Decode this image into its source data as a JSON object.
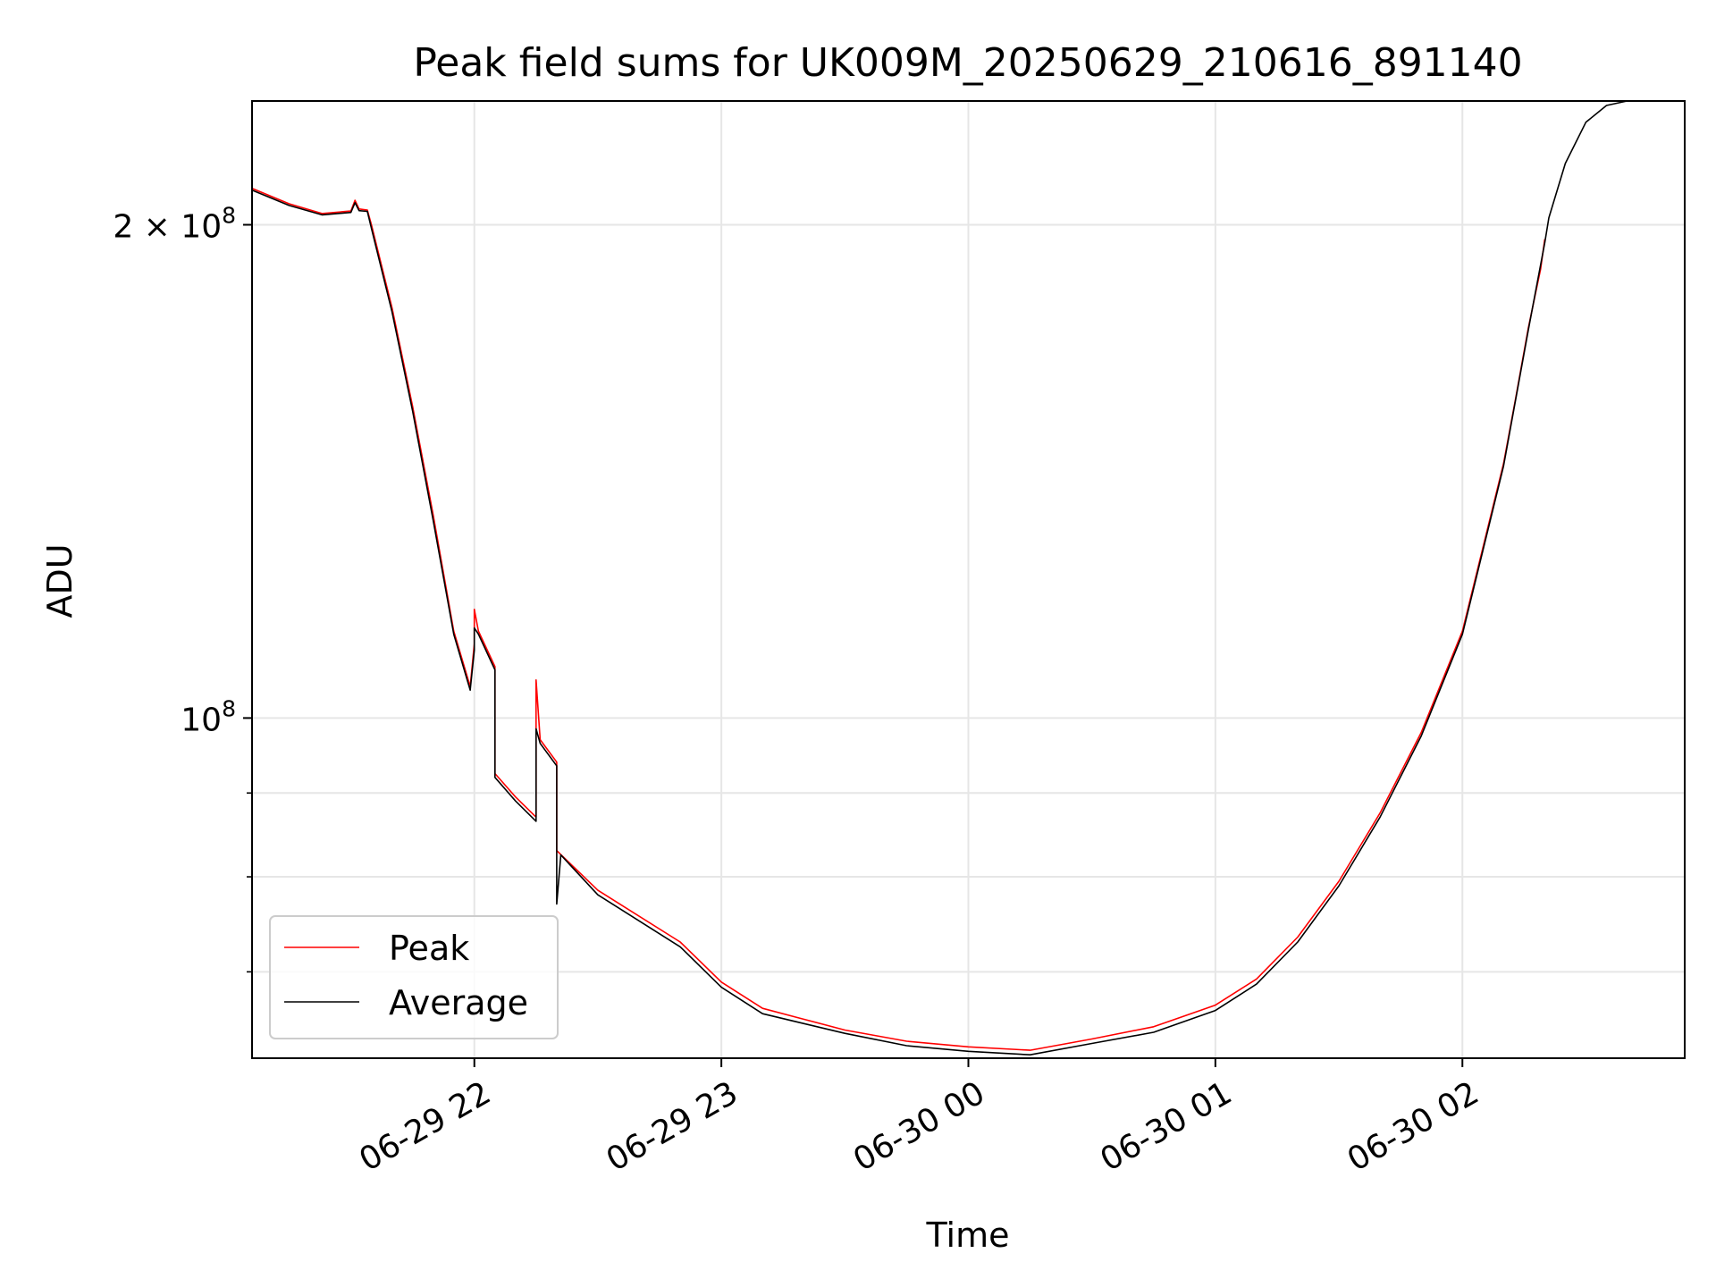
{
  "chart_data": {
    "type": "line",
    "title": "Peak field sums for UK009M_20250629_210616_891140",
    "xlabel": "Time",
    "ylabel": "ADU",
    "yscale": "log",
    "xlim": [
      "2025-06-29 21:06",
      "2025-06-30 02:54"
    ],
    "ylim": [
      62000000,
      238000000
    ],
    "grid": true,
    "legend_position": "lower-left",
    "x_ticks": [
      {
        "t": "2025-06-29 22:00",
        "label": "06-29 22"
      },
      {
        "t": "2025-06-29 23:00",
        "label": "06-29 23"
      },
      {
        "t": "2025-06-30 00:00",
        "label": "06-30 00"
      },
      {
        "t": "2025-06-30 01:00",
        "label": "06-30 01"
      },
      {
        "t": "2025-06-30 02:00",
        "label": "06-30 02"
      }
    ],
    "y_ticks": [
      {
        "value": 200000000,
        "base": "2 × 10",
        "exp": "8"
      },
      {
        "value": 100000000,
        "base": "10",
        "exp": "8"
      }
    ],
    "y_minor_ticks": [
      70000000,
      80000000,
      90000000
    ],
    "series": [
      {
        "name": "Peak",
        "color": "#ff0000",
        "points": [
          [
            "2025-06-29 21:06",
            210500000
          ],
          [
            "2025-06-29 21:15",
            206000000
          ],
          [
            "2025-06-29 21:23",
            203200000
          ],
          [
            "2025-06-29 21:30",
            203900000
          ],
          [
            "2025-06-29 21:31",
            207000000
          ],
          [
            "2025-06-29 21:32",
            204500000
          ],
          [
            "2025-06-29 21:34",
            204200000
          ],
          [
            "2025-06-29 21:35",
            200000000
          ],
          [
            "2025-06-29 21:40",
            178000000
          ],
          [
            "2025-06-29 21:45",
            155000000
          ],
          [
            "2025-06-29 21:50",
            133000000
          ],
          [
            "2025-06-29 21:55",
            113000000
          ],
          [
            "2025-06-29 21:59",
            104500000
          ],
          [
            "2025-06-29 22:00",
            111000000
          ],
          [
            "2025-06-29 22:00",
            116500000
          ],
          [
            "2025-06-29 22:01",
            113000000
          ],
          [
            "2025-06-29 22:05",
            107500000
          ],
          [
            "2025-06-29 22:05",
            92500000
          ],
          [
            "2025-06-29 22:10",
            89500000
          ],
          [
            "2025-06-29 22:15",
            87000000
          ],
          [
            "2025-06-29 22:15",
            105500000
          ],
          [
            "2025-06-29 22:16",
            97000000
          ],
          [
            "2025-06-29 22:20",
            94000000
          ],
          [
            "2025-06-29 22:20",
            83000000
          ],
          [
            "2025-06-29 22:30",
            78500000
          ],
          [
            "2025-06-29 22:50",
            73000000
          ],
          [
            "2025-06-29 23:00",
            69000000
          ],
          [
            "2025-06-29 23:10",
            66500000
          ],
          [
            "2025-06-29 23:30",
            64500000
          ],
          [
            "2025-06-29 23:45",
            63500000
          ],
          [
            "2025-06-30 00:00",
            63000000
          ],
          [
            "2025-06-30 00:15",
            62700000
          ],
          [
            "2025-06-30 00:30",
            63700000
          ],
          [
            "2025-06-30 00:45",
            64800000
          ],
          [
            "2025-06-30 01:00",
            66800000
          ],
          [
            "2025-06-30 01:10",
            69300000
          ],
          [
            "2025-06-30 01:20",
            73500000
          ],
          [
            "2025-06-30 01:30",
            79500000
          ],
          [
            "2025-06-30 01:40",
            87500000
          ],
          [
            "2025-06-30 01:50",
            98000000
          ],
          [
            "2025-06-30 02:00",
            113000000
          ],
          [
            "2025-06-30 02:10",
            143000000
          ],
          [
            "2025-06-30 02:13",
            157000000
          ],
          [
            "2025-06-30 02:16",
            173000000
          ],
          [
            "2025-06-30 02:19",
            188000000
          ],
          [
            "2025-06-30 02:20",
            196000000
          ]
        ]
      },
      {
        "name": "Average",
        "color": "#000000",
        "points": [
          [
            "2025-06-29 21:06",
            210000000
          ],
          [
            "2025-06-29 21:15",
            205500000
          ],
          [
            "2025-06-29 21:23",
            202800000
          ],
          [
            "2025-06-29 21:30",
            203500000
          ],
          [
            "2025-06-29 21:31",
            206300000
          ],
          [
            "2025-06-29 21:32",
            204000000
          ],
          [
            "2025-06-29 21:34",
            203800000
          ],
          [
            "2025-06-29 21:35",
            199000000
          ],
          [
            "2025-06-29 21:40",
            177000000
          ],
          [
            "2025-06-29 21:45",
            154000000
          ],
          [
            "2025-06-29 21:50",
            132000000
          ],
          [
            "2025-06-29 21:55",
            112500000
          ],
          [
            "2025-06-29 21:59",
            104000000
          ],
          [
            "2025-06-29 22:00",
            110000000
          ],
          [
            "2025-06-29 22:00",
            113500000
          ],
          [
            "2025-06-29 22:01",
            112500000
          ],
          [
            "2025-06-29 22:05",
            107000000
          ],
          [
            "2025-06-29 22:05",
            92000000
          ],
          [
            "2025-06-29 22:10",
            89000000
          ],
          [
            "2025-06-29 22:15",
            86500000
          ],
          [
            "2025-06-29 22:15",
            98500000
          ],
          [
            "2025-06-29 22:16",
            96500000
          ],
          [
            "2025-06-29 22:20",
            93500000
          ],
          [
            "2025-06-29 22:20",
            77000000
          ],
          [
            "2025-06-29 22:21",
            82500000
          ],
          [
            "2025-06-29 22:30",
            78000000
          ],
          [
            "2025-06-29 22:50",
            72500000
          ],
          [
            "2025-06-29 23:00",
            68500000
          ],
          [
            "2025-06-29 23:10",
            66000000
          ],
          [
            "2025-06-29 23:30",
            64200000
          ],
          [
            "2025-06-29 23:45",
            63100000
          ],
          [
            "2025-06-30 00:00",
            62600000
          ],
          [
            "2025-06-30 00:15",
            62300000
          ],
          [
            "2025-06-30 00:30",
            63300000
          ],
          [
            "2025-06-30 00:45",
            64300000
          ],
          [
            "2025-06-30 01:00",
            66300000
          ],
          [
            "2025-06-30 01:10",
            68800000
          ],
          [
            "2025-06-30 01:20",
            73000000
          ],
          [
            "2025-06-30 01:30",
            79000000
          ],
          [
            "2025-06-30 01:40",
            87000000
          ],
          [
            "2025-06-30 01:50",
            97500000
          ],
          [
            "2025-06-30 02:00",
            112500000
          ],
          [
            "2025-06-30 02:10",
            142500000
          ],
          [
            "2025-06-30 02:16",
            172500000
          ],
          [
            "2025-06-30 02:20",
            195000000
          ],
          [
            "2025-06-30 02:21",
            202000000
          ],
          [
            "2025-06-30 02:25",
            218000000
          ],
          [
            "2025-06-30 02:30",
            231000000
          ],
          [
            "2025-06-30 02:35",
            236500000
          ],
          [
            "2025-06-30 02:40",
            238000000
          ],
          [
            "2025-06-30 02:54",
            238000000
          ]
        ]
      }
    ]
  }
}
